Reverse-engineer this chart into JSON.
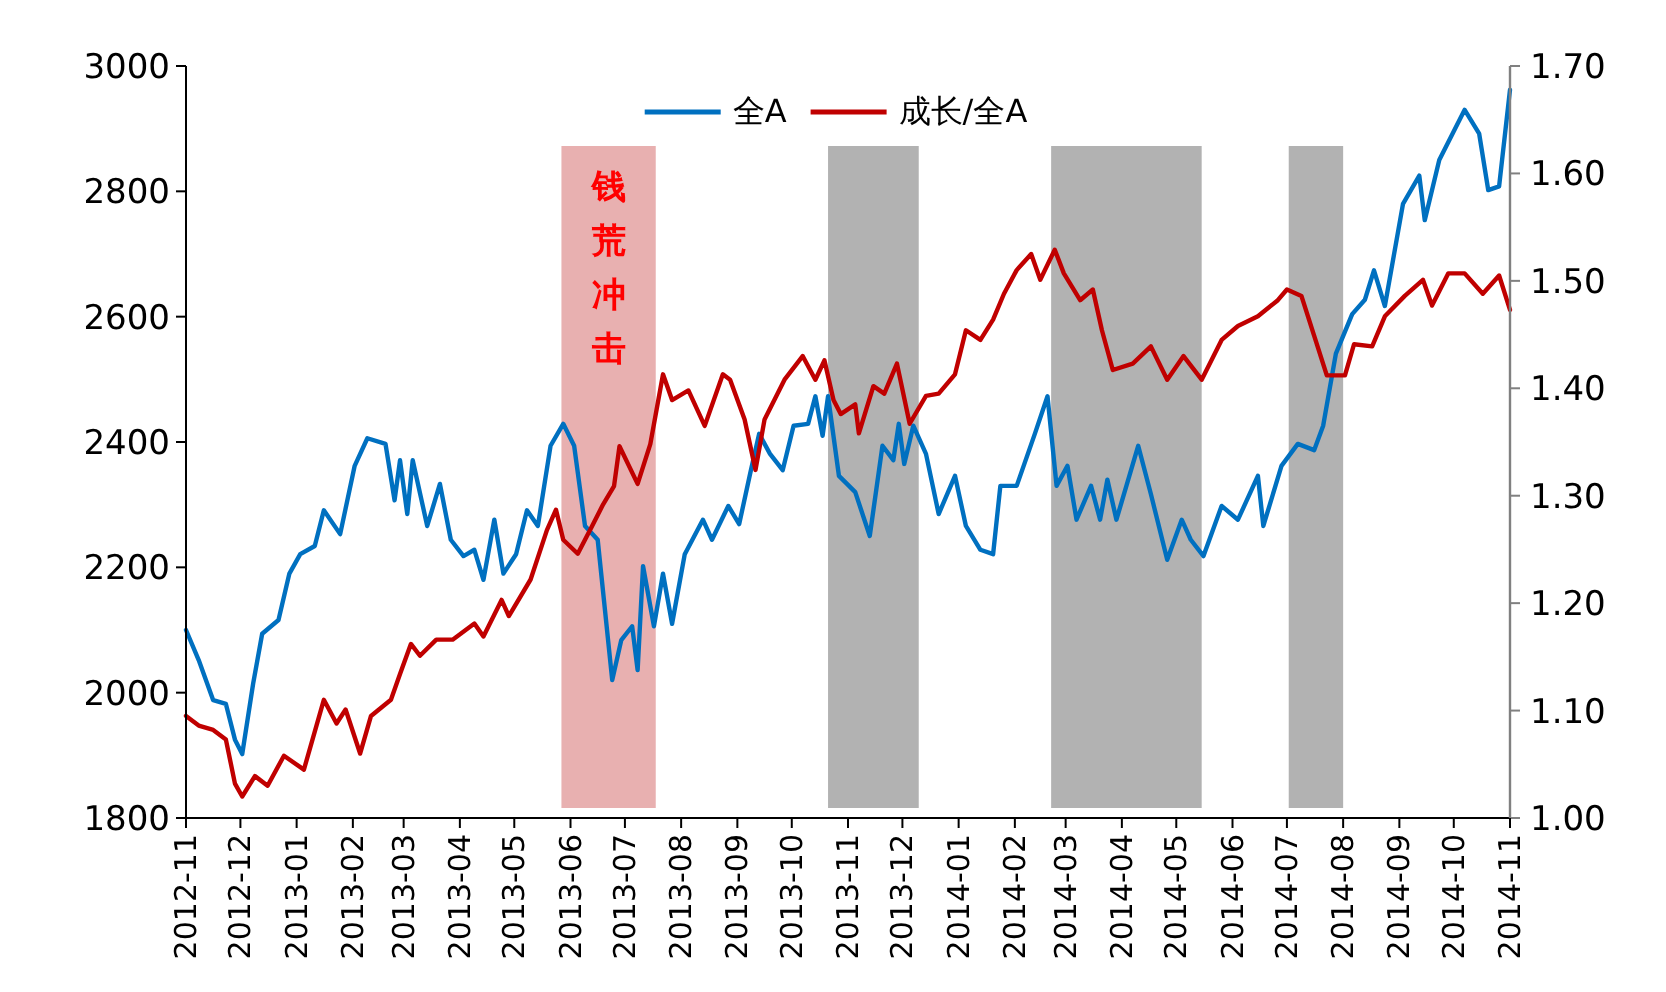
{
  "chart_data": {
    "type": "line",
    "series": [
      {
        "name": "全A",
        "color": "#0070c0",
        "axis": "y",
        "x": [
          "2012-11-01",
          "2012-11-08",
          "2012-11-16",
          "2012-11-23",
          "2012-11-28",
          "2012-12-02",
          "2012-12-08",
          "2012-12-13",
          "2012-12-22",
          "2012-12-28",
          "2013-01-03",
          "2013-01-11",
          "2013-01-16",
          "2013-01-25",
          "2013-02-02",
          "2013-02-09",
          "2013-02-19",
          "2013-02-24",
          "2013-02-27",
          "2013-03-03",
          "2013-03-06",
          "2013-03-14",
          "2013-03-21",
          "2013-03-27",
          "2013-04-03",
          "2013-04-09",
          "2013-04-14",
          "2013-04-20",
          "2013-04-25",
          "2013-05-02",
          "2013-05-08",
          "2013-05-14",
          "2013-05-21",
          "2013-05-28",
          "2013-06-03",
          "2013-06-09",
          "2013-06-16",
          "2013-06-24",
          "2013-06-29",
          "2013-07-05",
          "2013-07-08",
          "2013-07-11",
          "2013-07-17",
          "2013-07-22",
          "2013-07-27",
          "2013-08-03",
          "2013-08-13",
          "2013-08-18",
          "2013-08-27",
          "2013-09-02",
          "2013-09-08",
          "2013-09-13",
          "2013-09-19",
          "2013-09-26",
          "2013-10-02",
          "2013-10-10",
          "2013-10-14",
          "2013-10-18",
          "2013-10-21",
          "2013-10-27",
          "2013-11-05",
          "2013-11-13",
          "2013-11-20",
          "2013-11-26",
          "2013-11-29",
          "2013-12-02",
          "2013-12-07",
          "2013-12-14",
          "2013-12-21",
          "2013-12-30",
          "2014-01-05",
          "2014-01-13",
          "2014-01-20",
          "2014-01-24",
          "2014-02-02",
          "2014-02-12",
          "2014-02-19",
          "2014-02-24",
          "2014-03-02",
          "2014-03-07",
          "2014-03-15",
          "2014-03-20",
          "2014-03-24",
          "2014-03-29",
          "2014-04-10",
          "2014-04-17",
          "2014-04-26",
          "2014-05-04",
          "2014-05-09",
          "2014-05-16",
          "2014-05-26",
          "2014-06-04",
          "2014-06-15",
          "2014-06-18",
          "2014-06-28",
          "2014-07-07",
          "2014-07-16",
          "2014-07-21",
          "2014-07-28",
          "2014-08-06",
          "2014-08-13",
          "2014-08-18",
          "2014-08-24",
          "2014-09-03",
          "2014-09-12",
          "2014-09-15",
          "2014-09-23",
          "2014-10-07",
          "2014-10-15",
          "2014-10-20",
          "2014-10-26",
          "2014-11-01"
        ],
        "values": [
          2100,
          2052,
          1988,
          1982,
          1925,
          1902,
          2014,
          2094,
          2116,
          2190,
          2221,
          2234,
          2291,
          2253,
          2362,
          2406,
          2397,
          2307,
          2371,
          2285,
          2371,
          2266,
          2333,
          2244,
          2218,
          2228,
          2180,
          2276,
          2190,
          2221,
          2291,
          2266,
          2394,
          2429,
          2394,
          2266,
          2244,
          2020,
          2084,
          2106,
          2036,
          2202,
          2106,
          2190,
          2110,
          2221,
          2276,
          2244,
          2298,
          2269,
          2349,
          2413,
          2381,
          2355,
          2426,
          2429,
          2473,
          2410,
          2473,
          2346,
          2320,
          2250,
          2394,
          2371,
          2429,
          2365,
          2426,
          2381,
          2285,
          2346,
          2266,
          2228,
          2221,
          2330,
          2330,
          2413,
          2473,
          2330,
          2362,
          2276,
          2330,
          2276,
          2340,
          2276,
          2394,
          2317,
          2212,
          2276,
          2244,
          2218,
          2298,
          2276,
          2346,
          2266,
          2362,
          2397,
          2387,
          2426,
          2541,
          2604,
          2627,
          2674,
          2617,
          2780,
          2825,
          2754,
          2850,
          2930,
          2892,
          2802,
          2808,
          2962
        ]
      },
      {
        "name": "成长/全A",
        "color": "#c00000",
        "axis": "y2",
        "x": [
          "2012-11-01",
          "2012-11-08",
          "2012-11-16",
          "2012-11-23",
          "2012-11-28",
          "2012-12-02",
          "2012-12-09",
          "2012-12-16",
          "2012-12-25",
          "2013-01-05",
          "2013-01-16",
          "2013-01-23",
          "2013-01-28",
          "2013-02-05",
          "2013-02-11",
          "2013-02-22",
          "2013-02-27",
          "2013-03-05",
          "2013-03-10",
          "2013-03-19",
          "2013-03-28",
          "2013-04-09",
          "2013-04-14",
          "2013-04-24",
          "2013-04-28",
          "2013-05-10",
          "2013-05-19",
          "2013-05-24",
          "2013-05-28",
          "2013-06-05",
          "2013-06-13",
          "2013-06-19",
          "2013-06-25",
          "2013-06-28",
          "2013-07-08",
          "2013-07-15",
          "2013-07-22",
          "2013-07-27",
          "2013-08-05",
          "2013-08-14",
          "2013-08-24",
          "2013-08-28",
          "2013-09-05",
          "2013-09-11",
          "2013-09-16",
          "2013-09-27",
          "2013-10-07",
          "2013-10-14",
          "2013-10-19",
          "2013-10-24",
          "2013-10-28",
          "2013-11-05",
          "2013-11-07",
          "2013-11-15",
          "2013-11-21",
          "2013-11-28",
          "2013-12-05",
          "2013-12-14",
          "2013-12-21",
          "2013-12-30",
          "2014-01-05",
          "2014-01-13",
          "2014-01-20",
          "2014-01-26",
          "2014-02-02",
          "2014-02-10",
          "2014-02-15",
          "2014-02-23",
          "2014-02-28",
          "2014-03-09",
          "2014-03-16",
          "2014-03-21",
          "2014-03-27",
          "2014-04-07",
          "2014-04-17",
          "2014-04-26",
          "2014-05-05",
          "2014-05-15",
          "2014-05-26",
          "2014-06-04",
          "2014-06-15",
          "2014-06-26",
          "2014-07-01",
          "2014-07-09",
          "2014-07-16",
          "2014-07-23",
          "2014-08-02",
          "2014-08-07",
          "2014-08-17",
          "2014-08-24",
          "2014-09-04",
          "2014-09-14",
          "2014-09-19",
          "2014-09-28",
          "2014-10-07",
          "2014-10-17",
          "2014-10-26",
          "2014-11-01"
        ],
        "values": [
          1.095,
          1.086,
          1.082,
          1.073,
          1.032,
          1.02,
          1.039,
          1.03,
          1.058,
          1.045,
          1.11,
          1.088,
          1.101,
          1.06,
          1.095,
          1.11,
          1.134,
          1.162,
          1.151,
          1.166,
          1.166,
          1.181,
          1.169,
          1.203,
          1.188,
          1.222,
          1.268,
          1.287,
          1.259,
          1.246,
          1.272,
          1.292,
          1.309,
          1.346,
          1.311,
          1.348,
          1.413,
          1.389,
          1.398,
          1.365,
          1.413,
          1.408,
          1.371,
          1.324,
          1.371,
          1.408,
          1.43,
          1.408,
          1.426,
          1.389,
          1.376,
          1.385,
          1.358,
          1.402,
          1.395,
          1.423,
          1.367,
          1.393,
          1.395,
          1.413,
          1.454,
          1.445,
          1.464,
          1.488,
          1.51,
          1.525,
          1.501,
          1.529,
          1.507,
          1.482,
          1.492,
          1.454,
          1.417,
          1.423,
          1.439,
          1.408,
          1.43,
          1.408,
          1.445,
          1.458,
          1.467,
          1.482,
          1.492,
          1.486,
          1.449,
          1.412,
          1.412,
          1.441,
          1.439,
          1.467,
          1.486,
          1.501,
          1.477,
          1.507,
          1.507,
          1.488,
          1.505,
          1.473
        ]
      }
    ],
    "xlim": [
      "2012-11-01",
      "2014-11-01"
    ],
    "xticks": [
      "2012-11",
      "2012-12",
      "2013-01",
      "2013-02",
      "2013-03",
      "2013-04",
      "2013-05",
      "2013-06",
      "2013-07",
      "2013-08",
      "2013-09",
      "2013-10",
      "2013-11",
      "2013-12",
      "2014-01",
      "2014-02",
      "2014-03",
      "2014-04",
      "2014-05",
      "2014-06",
      "2014-07",
      "2014-08",
      "2014-09",
      "2014-10",
      "2014-11"
    ],
    "ylim": [
      1800,
      3000
    ],
    "yticks": [
      1800,
      2000,
      2200,
      2400,
      2600,
      2800,
      3000
    ],
    "y2lim": [
      1.0,
      1.7
    ],
    "y2ticks": [
      {
        "value": 1.0,
        "label": "1.00"
      },
      {
        "value": 1.1,
        "label": "1.10"
      },
      {
        "value": 1.2,
        "label": "1.20"
      },
      {
        "value": 1.3,
        "label": "1.30"
      },
      {
        "value": 1.4,
        "label": "1.40"
      },
      {
        "value": 1.5,
        "label": "1.50"
      },
      {
        "value": 1.6,
        "label": "1.60"
      },
      {
        "value": 1.7,
        "label": "1.70"
      }
    ],
    "bands": [
      {
        "axis": "x",
        "from": "2013-05-27",
        "to": "2013-07-18",
        "label": "钱荒冲击",
        "color": "#e8b0b0"
      },
      {
        "axis": "x",
        "from": "2013-10-21",
        "to": "2013-12-10",
        "color": "#b2b2b2"
      },
      {
        "axis": "x",
        "from": "2014-02-21",
        "to": "2014-05-15",
        "color": "#b2b2b2"
      },
      {
        "axis": "x",
        "from": "2014-07-02",
        "to": "2014-08-01",
        "color": "#b2b2b2"
      }
    ],
    "legend": "top",
    "grid": false,
    "marker": "none",
    "line_style": "solid"
  }
}
